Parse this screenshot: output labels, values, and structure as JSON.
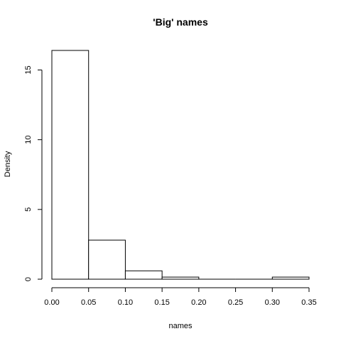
{
  "chart_data": {
    "type": "bar",
    "subtype": "histogram",
    "title": "'Big' names",
    "xlabel": "names",
    "ylabel": "Density",
    "xlim": [
      0,
      0.35
    ],
    "ylim": [
      0,
      16.4
    ],
    "bins": [
      {
        "x0": 0.0,
        "x1": 0.05,
        "value": 16.4
      },
      {
        "x0": 0.05,
        "x1": 0.1,
        "value": 2.8
      },
      {
        "x0": 0.1,
        "x1": 0.15,
        "value": 0.6
      },
      {
        "x0": 0.15,
        "x1": 0.2,
        "value": 0.15
      },
      {
        "x0": 0.2,
        "x1": 0.25,
        "value": 0.0
      },
      {
        "x0": 0.25,
        "x1": 0.3,
        "value": 0.0
      },
      {
        "x0": 0.3,
        "x1": 0.35,
        "value": 0.15
      }
    ],
    "x_ticks": [
      {
        "value": 0.0,
        "label": "0.00"
      },
      {
        "value": 0.05,
        "label": "0.05"
      },
      {
        "value": 0.1,
        "label": "0.10"
      },
      {
        "value": 0.15,
        "label": "0.15"
      },
      {
        "value": 0.2,
        "label": "0.20"
      },
      {
        "value": 0.25,
        "label": "0.25"
      },
      {
        "value": 0.3,
        "label": "0.30"
      },
      {
        "value": 0.35,
        "label": "0.35"
      }
    ],
    "y_ticks": [
      {
        "value": 0,
        "label": "0"
      },
      {
        "value": 5,
        "label": "5"
      },
      {
        "value": 10,
        "label": "10"
      },
      {
        "value": 15,
        "label": "15"
      }
    ],
    "grid": false,
    "colors": {
      "bar_fill": "#ffffff",
      "bar_stroke": "#000000",
      "axis": "#000000"
    }
  }
}
